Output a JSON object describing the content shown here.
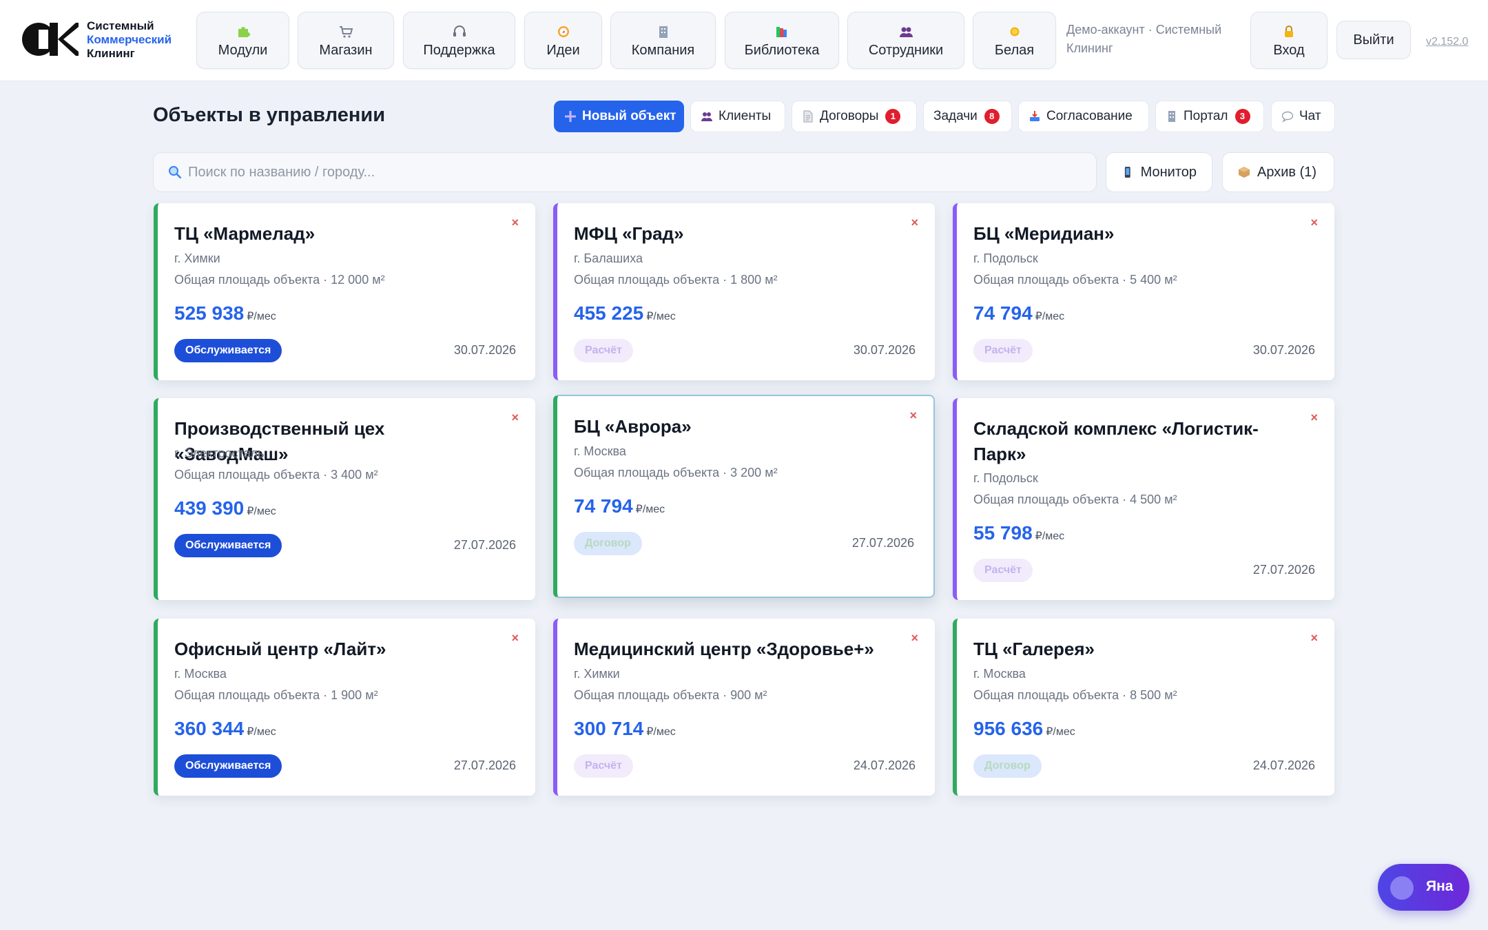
{
  "brand": {
    "line1": "Системный",
    "line2": "Коммерческий",
    "line3": "Клининг",
    "mark_letters": "СК"
  },
  "nav": [
    {
      "label": "Модули",
      "icon": "puzzle-icon"
    },
    {
      "label": "Магазин",
      "icon": "cart-icon"
    },
    {
      "label": "Поддержка",
      "icon": "headset-icon"
    },
    {
      "label": "Идеи",
      "icon": "compass-icon"
    },
    {
      "label": "Компания",
      "icon": "building-icon"
    },
    {
      "label": "Библиотека",
      "icon": "books-icon"
    },
    {
      "label": "Сотрудники",
      "icon": "people-icon"
    },
    {
      "label": "Белая",
      "icon": "sun-icon"
    }
  ],
  "header": {
    "demo_account": "Демо-аккаунт · Системный Клининг",
    "login_label": "Вход",
    "logout_label": "Выйти",
    "version": "v2.152.0"
  },
  "toolbar": {
    "title": "Объекты в управлении",
    "new_object": "Новый объект",
    "clients": "Клиенты",
    "contracts": "Договоры",
    "contracts_badge": "1",
    "tasks": "Задачи",
    "tasks_badge": "8",
    "approval": "Согласование",
    "portal": "Портал",
    "portal_badge": "3",
    "chat": "Чат"
  },
  "search": {
    "placeholder": "Поиск по названию / городу...",
    "value": ""
  },
  "side_buttons": {
    "monitor": "Монитор",
    "archive": "Архив (1)"
  },
  "price_unit": "₽/мес",
  "close_symbol": "×",
  "cards": [
    {
      "title": "ТЦ «Мармелад»",
      "city": "г. Химки",
      "area": "Общая площадь объекта · 12 000 м²",
      "price": "525 938",
      "status": "Обслуживается",
      "status_kind": "blue",
      "date": "30.07.2026",
      "accent": "green"
    },
    {
      "title": "МФЦ «Град»",
      "city": "г. Балашиха",
      "area": "Общая площадь объекта · 1 800 м²",
      "price": "455 225",
      "status": "Расчёт",
      "status_kind": "purple",
      "date": "30.07.2026",
      "accent": "purple"
    },
    {
      "title": "БЦ «Меридиан»",
      "city": "г. Подольск",
      "area": "Общая площадь объекта · 5 400 м²",
      "price": "74 794",
      "status": "Расчёт",
      "status_kind": "purple",
      "date": "30.07.2026",
      "accent": "purple"
    },
    {
      "title": "Производственный цех «ЗаводМаш»",
      "city": "г. Электросталь",
      "area": "Общая площадь объекта · 3 400 м²",
      "price": "439 390",
      "status": "Обслуживается",
      "status_kind": "blue",
      "date": "27.07.2026",
      "accent": "green"
    },
    {
      "title": "БЦ «Аврора»",
      "city": "г. Москва",
      "area": "Общая площадь объекта · 3 200 м²",
      "price": "74 794",
      "status": "Договор",
      "status_kind": "green",
      "date": "27.07.2026",
      "accent": "green"
    },
    {
      "title": "Складской комплекс «Логистик-Парк»",
      "city": "г. Подольск",
      "area": "Общая площадь объекта · 4 500 м²",
      "price": "55 798",
      "status": "Расчёт",
      "status_kind": "purple",
      "date": "27.07.2026",
      "accent": "purple"
    },
    {
      "title": "Офисный центр «Лайт»",
      "city": "г. Москва",
      "area": "Общая площадь объекта · 1 900 м²",
      "price": "360 344",
      "status": "Обслуживается",
      "status_kind": "blue",
      "date": "27.07.2026",
      "accent": "green"
    },
    {
      "title": "Медицинский центр «Здоровье+»",
      "city": "г. Химки",
      "area": "Общая площадь объекта · 900 м²",
      "price": "300 714",
      "status": "Расчёт",
      "status_kind": "purple",
      "date": "24.07.2026",
      "accent": "purple"
    },
    {
      "title": "ТЦ «Галерея»",
      "city": "г. Москва",
      "area": "Общая площадь объекта · 8 500 м²",
      "price": "956 636",
      "status": "Договор",
      "status_kind": "green",
      "date": "24.07.2026",
      "accent": "green"
    }
  ],
  "assistant": {
    "label": "Яна"
  },
  "colors": {
    "primary": "#2563eb",
    "badge": "#e11d2e",
    "green_accent": "#2faa5f",
    "purple_accent": "#8b5cf6",
    "danger": "#e05a5a"
  }
}
